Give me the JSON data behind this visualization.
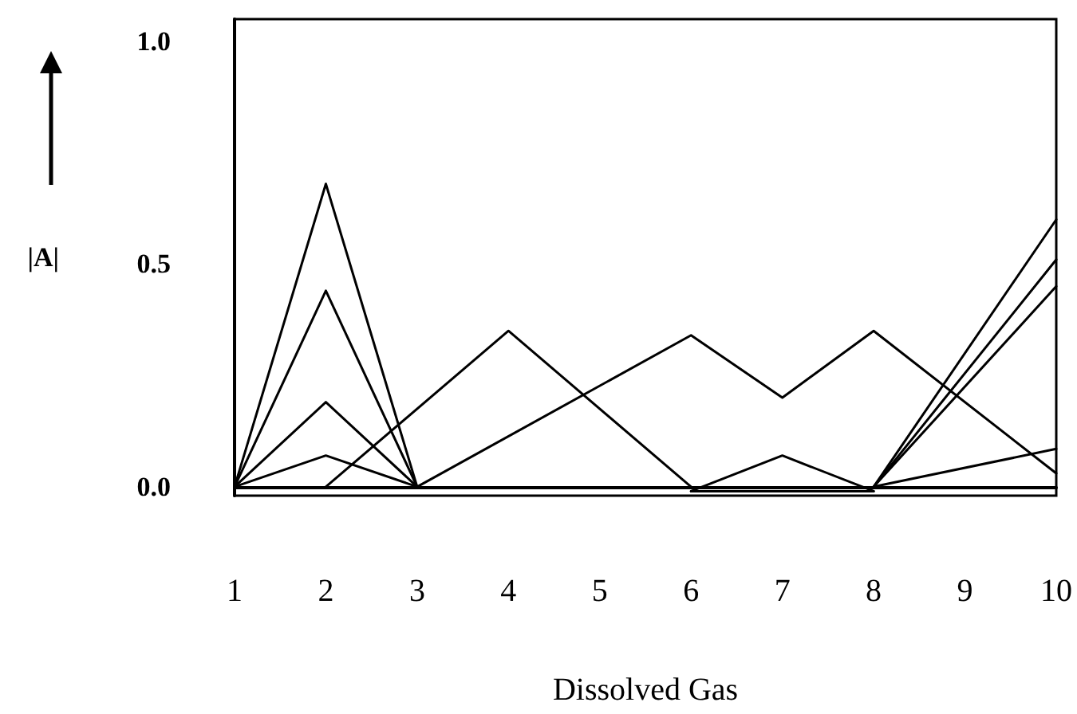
{
  "chart_data": {
    "type": "line",
    "xlabel": "Dissolved Gas",
    "ylabel": "|A|",
    "categories": [
      "1",
      "2",
      "3",
      "4",
      "5",
      "6",
      "7",
      "8",
      "9",
      "10"
    ],
    "series": [
      {
        "color": "#000000",
        "values": [
          0,
          0.68,
          0,
          null,
          null,
          null,
          null,
          null,
          null,
          null
        ]
      },
      {
        "color": "#000000",
        "values": [
          0,
          0.44,
          0,
          null,
          null,
          null,
          null,
          null,
          null,
          null
        ]
      },
      {
        "color": "#000000",
        "values": [
          0,
          0.19,
          0,
          null,
          null,
          null,
          null,
          null,
          null,
          null
        ]
      },
      {
        "color": "#000000",
        "values": [
          0,
          0.07,
          0,
          null,
          null,
          null,
          null,
          null,
          null,
          null
        ]
      },
      {
        "color": "#000000",
        "values": [
          null,
          0,
          null,
          0.35,
          null,
          0,
          null,
          null,
          null,
          null
        ]
      },
      {
        "color": "#000000",
        "values": [
          null,
          null,
          0,
          null,
          null,
          0.34,
          0.2,
          0.35,
          null,
          0.03
        ]
      },
      {
        "color": "#000000",
        "values": [
          null,
          null,
          null,
          null,
          null,
          -0.01,
          0.07,
          -0.01,
          null,
          null
        ]
      },
      {
        "color": "#000000",
        "values": [
          null,
          null,
          null,
          null,
          null,
          -0.01,
          null,
          -0.01,
          null,
          null
        ]
      },
      {
        "color": "#000000",
        "values": [
          null,
          null,
          null,
          null,
          null,
          null,
          null,
          0,
          null,
          0.6
        ]
      },
      {
        "color": "#000000",
        "values": [
          null,
          null,
          null,
          null,
          null,
          null,
          null,
          0,
          null,
          0.51
        ]
      },
      {
        "color": "#000000",
        "values": [
          null,
          null,
          null,
          null,
          null,
          null,
          null,
          0,
          null,
          0.45
        ]
      },
      {
        "color": "#000000",
        "values": [
          null,
          null,
          null,
          null,
          null,
          null,
          null,
          0,
          null,
          0.085
        ]
      }
    ],
    "ylim": [
      -0.02,
      1.05
    ],
    "yticks": [
      {
        "value": 0,
        "label": "0.0"
      },
      {
        "value": 0.5,
        "label": "0.5"
      },
      {
        "value": 1,
        "label": "1.0"
      }
    ],
    "grid": false,
    "marker": "none",
    "line_style": "solid"
  }
}
